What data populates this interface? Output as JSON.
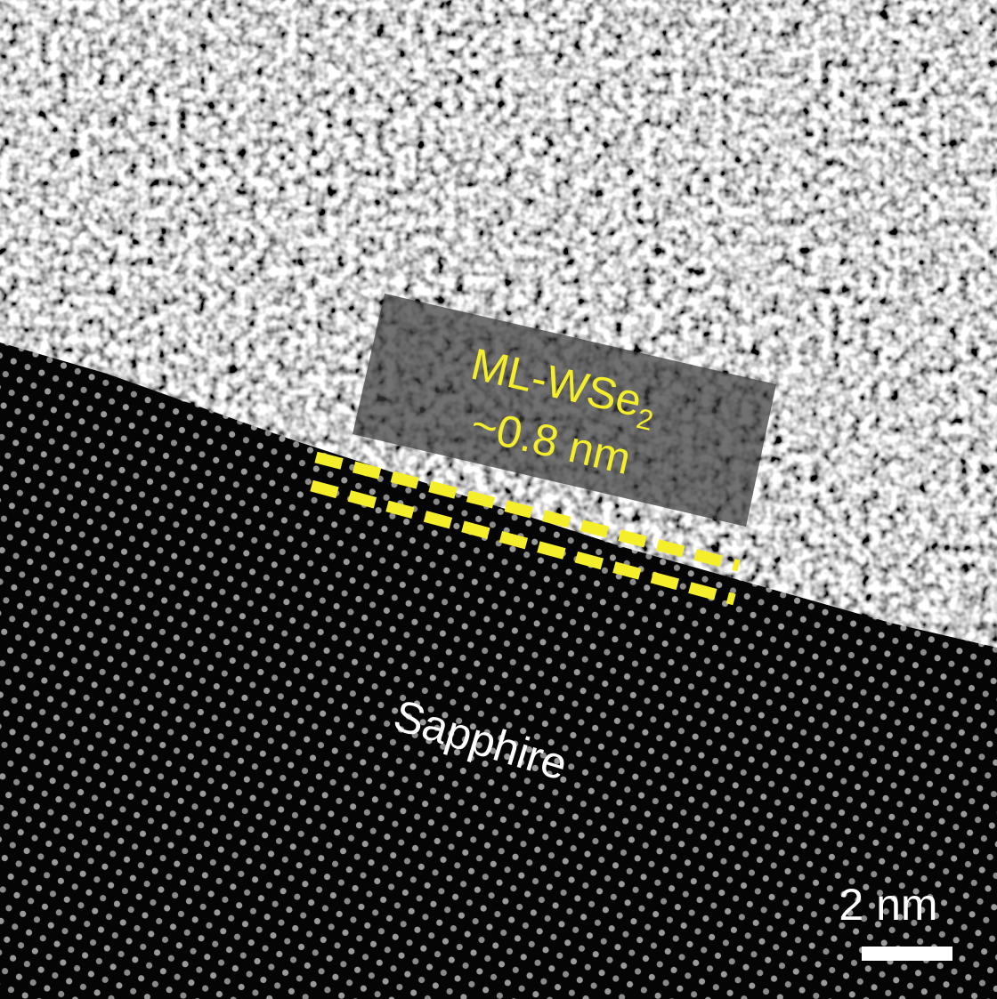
{
  "annotations": {
    "layer": {
      "name": "ML-WSe",
      "subscript": "2"
    },
    "thickness": "~0.8 nm",
    "substrate": "Sapphire",
    "scale_bar": "2 nm"
  }
}
